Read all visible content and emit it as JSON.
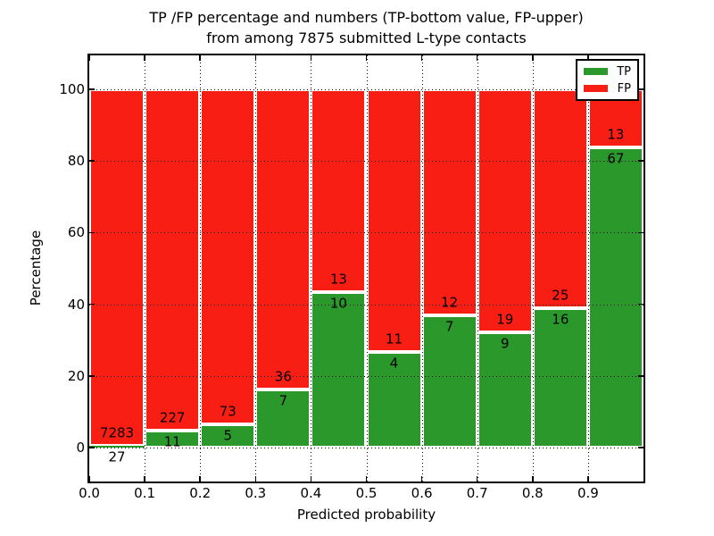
{
  "title": {
    "line1": "TP /FP percentage and numbers (TP-bottom value, FP-upper)",
    "line2": "from among 7875 submitted L-type contacts"
  },
  "axes": {
    "xlabel": "Predicted probability",
    "ylabel": "Percentage"
  },
  "legend": {
    "items": [
      {
        "label": "TP",
        "color": "#2B982B"
      },
      {
        "label": "FP",
        "color": "#F91E13"
      }
    ]
  },
  "chart_data": {
    "type": "bar",
    "stacked": true,
    "title": "TP /FP percentage and numbers (TP-bottom value, FP-upper) from among 7875 submitted L-type contacts",
    "xlabel": "Predicted probability",
    "ylabel": "Percentage",
    "total_contacts": 7875,
    "xlim": [
      0.0,
      1.0
    ],
    "ylim": [
      -9.5,
      109.5
    ],
    "grid": true,
    "grid_style": "dotted",
    "legend_position": "upper right",
    "bin_width": 0.1,
    "x_ticks": [
      0.0,
      0.1,
      0.2,
      0.3,
      0.4,
      0.5,
      0.6,
      0.7,
      0.8,
      0.9
    ],
    "x_tick_labels": [
      "0.0",
      "0.1",
      "0.2",
      "0.3",
      "0.4",
      "0.5",
      "0.6",
      "0.7",
      "0.8",
      "0.9"
    ],
    "y_ticks": [
      0,
      20,
      40,
      60,
      80,
      100
    ],
    "y_tick_labels": [
      "0",
      "20",
      "40",
      "60",
      "80",
      "100"
    ],
    "colors": {
      "tp": "#2B982B",
      "fp": "#F91E13",
      "bar_edge": "#FFFFFF"
    },
    "series": [
      {
        "name": "TP",
        "counts": [
          27,
          11,
          5,
          7,
          10,
          4,
          7,
          9,
          16,
          67
        ]
      },
      {
        "name": "FP",
        "counts": [
          7283,
          227,
          73,
          36,
          13,
          11,
          12,
          19,
          25,
          13
        ]
      }
    ],
    "bars": [
      {
        "bin_start": 0.0,
        "bin_end": 0.1,
        "tp": 27,
        "fp": 7283,
        "tp_pct": 0.37,
        "fp_pct": 99.63
      },
      {
        "bin_start": 0.1,
        "bin_end": 0.2,
        "tp": 11,
        "fp": 227,
        "tp_pct": 4.62,
        "fp_pct": 95.38
      },
      {
        "bin_start": 0.2,
        "bin_end": 0.3,
        "tp": 5,
        "fp": 73,
        "tp_pct": 6.41,
        "fp_pct": 93.59
      },
      {
        "bin_start": 0.3,
        "bin_end": 0.4,
        "tp": 7,
        "fp": 36,
        "tp_pct": 16.28,
        "fp_pct": 83.72
      },
      {
        "bin_start": 0.4,
        "bin_end": 0.5,
        "tp": 10,
        "fp": 13,
        "tp_pct": 43.48,
        "fp_pct": 56.52
      },
      {
        "bin_start": 0.5,
        "bin_end": 0.6,
        "tp": 4,
        "fp": 11,
        "tp_pct": 26.67,
        "fp_pct": 73.33
      },
      {
        "bin_start": 0.6,
        "bin_end": 0.7,
        "tp": 7,
        "fp": 12,
        "tp_pct": 36.84,
        "fp_pct": 63.16
      },
      {
        "bin_start": 0.7,
        "bin_end": 0.8,
        "tp": 9,
        "fp": 19,
        "tp_pct": 32.14,
        "fp_pct": 67.86
      },
      {
        "bin_start": 0.8,
        "bin_end": 0.9,
        "tp": 16,
        "fp": 25,
        "tp_pct": 39.02,
        "fp_pct": 60.98
      },
      {
        "bin_start": 0.9,
        "bin_end": 1.0,
        "tp": 67,
        "fp": 13,
        "tp_pct": 83.75,
        "fp_pct": 16.25
      }
    ]
  }
}
